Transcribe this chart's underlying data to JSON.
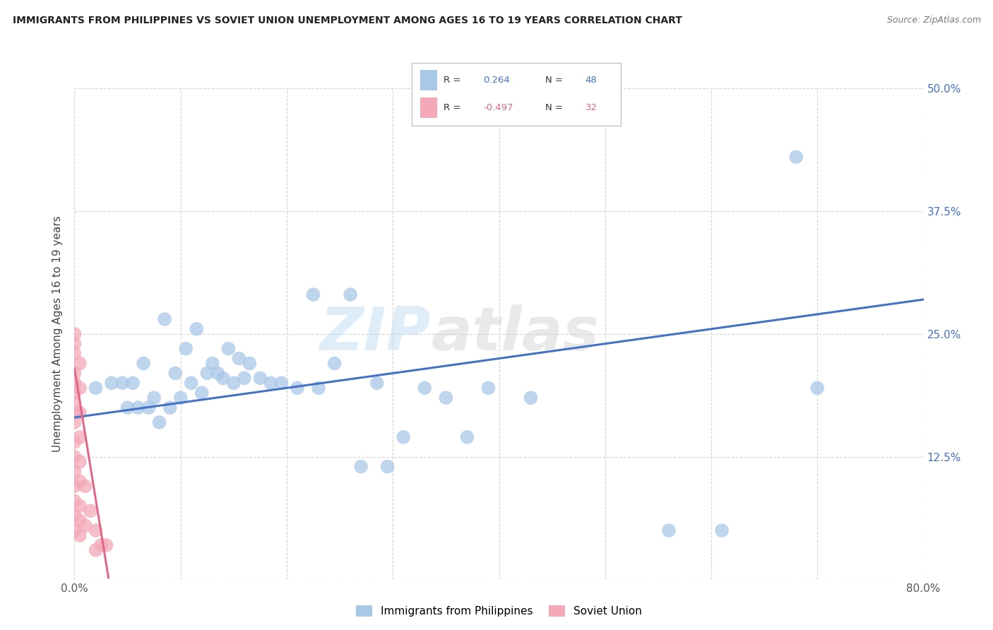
{
  "title": "IMMIGRANTS FROM PHILIPPINES VS SOVIET UNION UNEMPLOYMENT AMONG AGES 16 TO 19 YEARS CORRELATION CHART",
  "source": "Source: ZipAtlas.com",
  "ylabel": "Unemployment Among Ages 16 to 19 years",
  "xlim": [
    0.0,
    0.8
  ],
  "ylim": [
    0.0,
    0.5
  ],
  "xticks": [
    0.0,
    0.1,
    0.2,
    0.3,
    0.4,
    0.5,
    0.6,
    0.7,
    0.8
  ],
  "ytick_positions": [
    0.0,
    0.125,
    0.25,
    0.375,
    0.5
  ],
  "yticklabels_right": [
    "",
    "12.5%",
    "25.0%",
    "37.5%",
    "50.0%"
  ],
  "philippines_R": 0.264,
  "philippines_N": 48,
  "soviet_R": -0.497,
  "soviet_N": 32,
  "philippines_color": "#a8c8e8",
  "soviet_color": "#f4a8b8",
  "philippines_line_color": "#4472c4",
  "soviet_line_color": "#e06888",
  "background_color": "#ffffff",
  "grid_color": "#c8c8c8",
  "watermark_zip": "ZIP",
  "watermark_atlas": "atlas",
  "philippines_x": [
    0.02,
    0.035,
    0.045,
    0.05,
    0.055,
    0.06,
    0.065,
    0.07,
    0.075,
    0.08,
    0.085,
    0.09,
    0.095,
    0.1,
    0.105,
    0.11,
    0.115,
    0.12,
    0.125,
    0.13,
    0.135,
    0.14,
    0.145,
    0.15,
    0.155,
    0.16,
    0.165,
    0.175,
    0.185,
    0.195,
    0.21,
    0.225,
    0.23,
    0.245,
    0.26,
    0.27,
    0.285,
    0.295,
    0.31,
    0.33,
    0.35,
    0.37,
    0.39,
    0.43,
    0.56,
    0.61,
    0.68,
    0.7
  ],
  "philippines_y": [
    0.195,
    0.2,
    0.2,
    0.175,
    0.2,
    0.175,
    0.22,
    0.175,
    0.185,
    0.16,
    0.265,
    0.175,
    0.21,
    0.185,
    0.235,
    0.2,
    0.255,
    0.19,
    0.21,
    0.22,
    0.21,
    0.205,
    0.235,
    0.2,
    0.225,
    0.205,
    0.22,
    0.205,
    0.2,
    0.2,
    0.195,
    0.29,
    0.195,
    0.22,
    0.29,
    0.115,
    0.2,
    0.115,
    0.145,
    0.195,
    0.185,
    0.145,
    0.195,
    0.185,
    0.05,
    0.05,
    0.43,
    0.195
  ],
  "soviet_x": [
    0.0,
    0.0,
    0.0,
    0.0,
    0.0,
    0.0,
    0.0,
    0.0,
    0.0,
    0.0,
    0.0,
    0.0,
    0.0,
    0.0,
    0.0,
    0.0,
    0.005,
    0.005,
    0.005,
    0.005,
    0.005,
    0.005,
    0.005,
    0.005,
    0.005,
    0.01,
    0.01,
    0.015,
    0.02,
    0.02,
    0.025,
    0.03
  ],
  "soviet_y": [
    0.25,
    0.24,
    0.23,
    0.21,
    0.2,
    0.19,
    0.18,
    0.17,
    0.16,
    0.14,
    0.125,
    0.11,
    0.095,
    0.08,
    0.065,
    0.05,
    0.22,
    0.195,
    0.17,
    0.145,
    0.12,
    0.1,
    0.075,
    0.06,
    0.045,
    0.095,
    0.055,
    0.07,
    0.05,
    0.03,
    0.035,
    0.035
  ],
  "philippines_trendline_x": [
    0.0,
    0.8
  ],
  "philippines_trendline_y": [
    0.165,
    0.285
  ],
  "soviet_trendline_x": [
    0.0,
    0.032
  ],
  "soviet_trendline_y": [
    0.215,
    0.002
  ]
}
